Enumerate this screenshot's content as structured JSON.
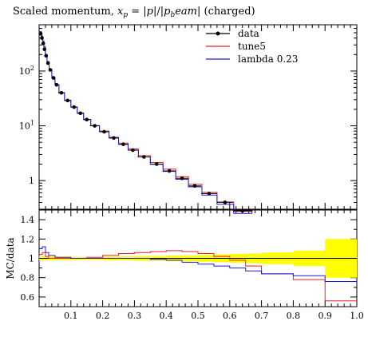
{
  "chart_data": {
    "type": "line",
    "title": "Scaled momentum, x_p = |p|/|p_beam| (charged)",
    "title_parts": {
      "prefix": "Scaled momentum, ",
      "var": "x",
      "var_sub": "p",
      "eq": " = |",
      "p1": "p",
      "mid": "|/|",
      "p2": "p",
      "p2_sub": "b",
      "rest": "eam",
      "end": "| (charged)"
    },
    "xlabel": "",
    "ylabel": "",
    "xlim": [
      0.0,
      1.0
    ],
    "ylim": [
      0.3,
      700
    ],
    "yscale": "log",
    "xticks": [
      "0.1",
      "0.2",
      "0.3",
      "0.4",
      "0.5",
      "0.6",
      "0.7",
      "0.8",
      "0.9",
      "1.0"
    ],
    "xtick_values": [
      0.1,
      0.2,
      0.3,
      0.4,
      0.5,
      0.6,
      0.7,
      0.8,
      0.9,
      1.0
    ],
    "yticks": [
      {
        "label": "1",
        "value": 1
      },
      {
        "label": "10",
        "exp": "1",
        "value": 10
      },
      {
        "label": "10",
        "exp": "2",
        "value": 100
      }
    ],
    "legend_position": "top-right",
    "series": [
      {
        "name": "data",
        "color": "#000000",
        "style": "points-with-errorbars",
        "x": [
          0.005,
          0.009,
          0.013,
          0.017,
          0.022,
          0.028,
          0.035,
          0.045,
          0.055,
          0.07,
          0.09,
          0.11,
          0.13,
          0.15,
          0.175,
          0.205,
          0.235,
          0.265,
          0.295,
          0.33,
          0.37,
          0.41,
          0.45,
          0.49,
          0.535,
          0.585,
          0.64
        ],
        "y": [
          480,
          400,
          320,
          250,
          190,
          140,
          105,
          75,
          56,
          40,
          29,
          22,
          17,
          13,
          10,
          7.8,
          6.0,
          4.6,
          3.6,
          2.7,
          2.0,
          1.5,
          1.1,
          0.8,
          0.58,
          0.4,
          0.28
        ],
        "xerr": [
          0.002,
          0.002,
          0.002,
          0.002,
          0.003,
          0.003,
          0.004,
          0.005,
          0.005,
          0.01,
          0.01,
          0.01,
          0.01,
          0.01,
          0.015,
          0.015,
          0.015,
          0.015,
          0.015,
          0.02,
          0.02,
          0.02,
          0.02,
          0.02,
          0.025,
          0.025,
          0.03
        ]
      },
      {
        "name": "tune5",
        "color": "#ee1c24",
        "style": "step",
        "ratio_x": [
          0.0,
          0.01,
          0.02,
          0.03,
          0.05,
          0.1,
          0.15,
          0.2,
          0.25,
          0.3,
          0.35,
          0.4,
          0.45,
          0.5,
          0.55,
          0.6,
          0.65,
          0.7,
          0.8,
          0.9,
          1.0
        ],
        "ratio_y": [
          1.04,
          1.06,
          1.02,
          1.0,
          1.0,
          1.0,
          1.01,
          1.03,
          1.05,
          1.06,
          1.07,
          1.08,
          1.07,
          1.05,
          1.02,
          0.98,
          0.92,
          0.84,
          0.78,
          0.56
        ]
      },
      {
        "name": "lambda 0.23",
        "color": "#1c1cdd",
        "style": "step",
        "ratio_x": [
          0.0,
          0.01,
          0.02,
          0.03,
          0.05,
          0.1,
          0.15,
          0.2,
          0.25,
          0.3,
          0.35,
          0.4,
          0.45,
          0.5,
          0.55,
          0.6,
          0.65,
          0.7,
          0.8,
          0.9,
          1.0
        ],
        "ratio_y": [
          1.1,
          1.12,
          1.06,
          1.03,
          1.01,
          1.0,
          1.0,
          1.0,
          1.0,
          1.0,
          0.99,
          0.98,
          0.96,
          0.94,
          0.92,
          0.9,
          0.87,
          0.84,
          0.82,
          0.76
        ]
      }
    ],
    "ratio_panel": {
      "ylabel": "MC/data",
      "ylim": [
        0.5,
        1.5
      ],
      "yticks": [
        "0.6",
        "0.8",
        "1",
        "1.2",
        "1.4"
      ],
      "ytick_values": [
        0.6,
        0.8,
        1.0,
        1.2,
        1.4
      ],
      "band_color": "#ffff00",
      "band_x": [
        0.0,
        0.1,
        0.2,
        0.3,
        0.4,
        0.5,
        0.55,
        0.6,
        0.65,
        0.7,
        0.8,
        0.9,
        1.0
      ],
      "band_err": [
        0.02,
        0.015,
        0.02,
        0.025,
        0.03,
        0.035,
        0.04,
        0.045,
        0.05,
        0.06,
        0.08,
        0.2
      ]
    }
  }
}
